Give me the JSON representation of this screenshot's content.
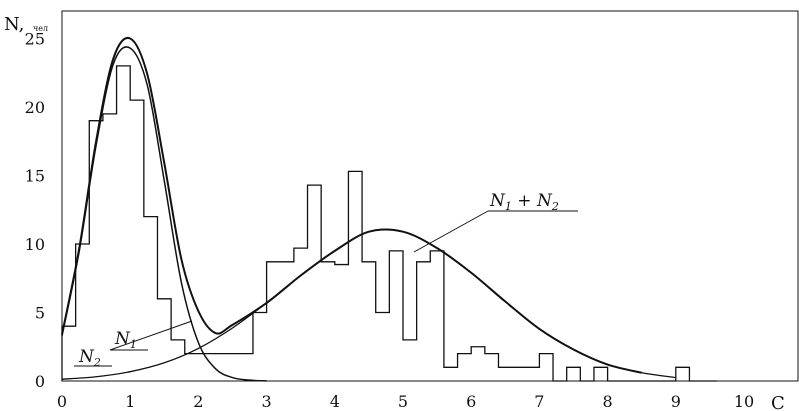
{
  "chart_data": {
    "type": "line",
    "title": "",
    "xlabel": "C",
    "ylabel": "N,",
    "ylabel_unit": "чел",
    "xlim": [
      0,
      11
    ],
    "ylim": [
      0,
      27
    ],
    "x_ticks": [
      "0",
      "1",
      "2",
      "3",
      "4",
      "5",
      "6",
      "7",
      "8",
      "9",
      "10"
    ],
    "y_ticks": [
      "0",
      "5",
      "10",
      "15",
      "20",
      "25"
    ],
    "grid": false,
    "histogram": {
      "bin_width": 0.2,
      "start": 0,
      "counts": [
        4,
        10,
        19,
        19.5,
        23,
        20.5,
        12,
        6,
        3,
        2,
        2,
        2,
        2,
        2,
        5,
        8.7,
        8.7,
        9.7,
        14.3,
        8.7,
        8.5,
        15.3,
        8.7,
        5,
        9.5,
        3,
        8.7,
        9.5,
        1,
        2,
        2.5,
        2,
        1,
        1,
        1,
        2,
        0,
        1,
        0,
        1,
        0,
        0,
        0,
        0,
        0,
        1,
        0,
        0
      ]
    },
    "series": [
      {
        "label": [
          "N",
          "2"
        ],
        "x": [
          0,
          0.5,
          1,
          1.5,
          2,
          2.5,
          3,
          3.5,
          4,
          4.5,
          5,
          5.5,
          6,
          6.5,
          7,
          7.5,
          8,
          8.5,
          9
        ],
        "y": [
          0.13,
          0.31,
          0.68,
          1.33,
          2.38,
          3.87,
          5.7,
          7.7,
          9.5,
          10.9,
          10.9,
          9.7,
          7.9,
          5.8,
          3.8,
          2.3,
          1.2,
          0.6,
          0.25
        ]
      },
      {
        "label": [
          "N",
          "1"
        ],
        "x": [
          0,
          0.25,
          0.5,
          0.75,
          1,
          1.25,
          1.5,
          1.75,
          2,
          2.25,
          2.5,
          2.75,
          3
        ],
        "y": [
          3.3,
          9.4,
          17.2,
          23.1,
          24.3,
          21.6,
          14.6,
          7.2,
          2.8,
          0.9,
          0.25,
          0.06,
          0.01
        ]
      },
      {
        "label": [
          "N",
          "1",
          " + ",
          "N",
          "2"
        ],
        "x": [
          0,
          0.25,
          0.5,
          0.75,
          1,
          1.25,
          1.5,
          1.75,
          2,
          2.25,
          2.5,
          3,
          3.5,
          4,
          4.5,
          5,
          5.5,
          6,
          6.5,
          7,
          7.5,
          8,
          8.5
        ],
        "y": [
          3.4,
          9.6,
          17.5,
          23.5,
          25,
          22.4,
          15.9,
          8.9,
          5.1,
          3.5,
          4.1,
          5.7,
          7.7,
          9.5,
          10.9,
          10.9,
          9.7,
          7.9,
          5.8,
          3.8,
          2.3,
          1.2,
          0.6
        ]
      }
    ]
  }
}
